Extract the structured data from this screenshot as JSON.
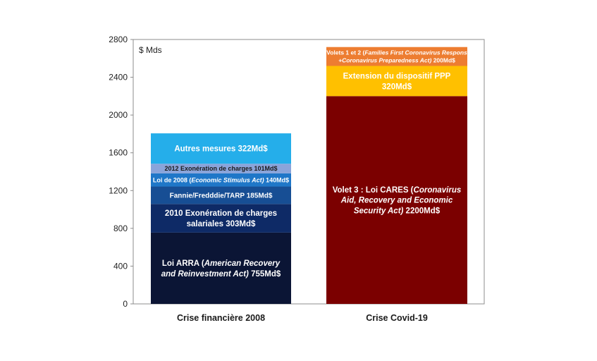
{
  "chart_data": {
    "type": "bar",
    "stacked": true,
    "unit_label": "$ Mds",
    "ylim": [
      0,
      2800
    ],
    "yticks": [
      0,
      400,
      800,
      1200,
      1600,
      2000,
      2400,
      2800
    ],
    "grid": false,
    "legend": "none",
    "categories": [
      "Crise financière 2008",
      "Crise Covid-19"
    ],
    "stacks": [
      {
        "category": "Crise financière 2008",
        "total": 1806,
        "segments": [
          {
            "value": 755,
            "color": "#0b1535",
            "text_color": "#ffffff",
            "label_parts": [
              [
                {
                  "t": "Loi ARRA (",
                  "i": false
                },
                {
                  "t": "American Recovery",
                  "i": true
                }
              ],
              [
                {
                  "t": "and Reinvestment Act)",
                  "i": true
                },
                {
                  "t": " 755Md$",
                  "i": false
                }
              ]
            ]
          },
          {
            "value": 303,
            "color": "#0e2a66",
            "text_color": "#ffffff",
            "label_parts": [
              [
                {
                  "t": "2010 Exonération de charges",
                  "i": false
                }
              ],
              [
                {
                  "t": "salariales 303Md$",
                  "i": false
                }
              ]
            ]
          },
          {
            "value": 185,
            "color": "#174e94",
            "text_color": "#ffffff",
            "label_parts": [
              [
                {
                  "t": "Fannie/Fredddie/TARP 185Md$",
                  "i": false
                }
              ]
            ]
          },
          {
            "value": 140,
            "color": "#1f77c8",
            "text_color": "#ffffff",
            "label_parts": [
              [
                {
                  "t": "Loi de 2008 (",
                  "i": false
                },
                {
                  "t": "Economic Stimulus Act)",
                  "i": true
                },
                {
                  "t": " 140Md$",
                  "i": false
                }
              ]
            ]
          },
          {
            "value": 101,
            "color": "#8aa4da",
            "text_color": "#1a1a1a",
            "label_parts": [
              [
                {
                  "t": "2012 Exonération de charges 101Md$",
                  "i": false
                }
              ]
            ]
          },
          {
            "value": 322,
            "color": "#25aeea",
            "text_color": "#ffffff",
            "label_parts": [
              [
                {
                  "t": "Autres mesures 322Md$",
                  "i": false
                }
              ]
            ]
          }
        ]
      },
      {
        "category": "Crise Covid-19",
        "total": 2720,
        "segments": [
          {
            "value": 2200,
            "color": "#7b0000",
            "text_color": "#ffffff",
            "label_parts": [
              [
                {
                  "t": "Volet 3 : Loi CARES (",
                  "i": false
                },
                {
                  "t": "Coronavirus",
                  "i": true
                }
              ],
              [
                {
                  "t": "Aid, Recovery and Economic",
                  "i": true
                }
              ],
              [
                {
                  "t": "Security Act)",
                  "i": true
                },
                {
                  "t": " 2200Md$",
                  "i": false
                }
              ]
            ]
          },
          {
            "value": 320,
            "color": "#ffc000",
            "text_color": "#ffffff",
            "label_parts": [
              [
                {
                  "t": "Extension du dispositif PPP",
                  "i": false
                }
              ],
              [
                {
                  "t": "320Md$",
                  "i": false
                }
              ]
            ]
          },
          {
            "value": 200,
            "color": "#ed7d31",
            "text_color": "#ffffff",
            "label_parts": [
              [
                {
                  "t": "Volets 1 et 2 (",
                  "i": false
                },
                {
                  "t": "Families First Coronavirus Respons",
                  "i": true
                }
              ],
              [
                {
                  "t": "+Coronavirus Preparedness Act)",
                  "i": true
                },
                {
                  "t": " 200Md$",
                  "i": false
                }
              ]
            ]
          }
        ]
      }
    ]
  }
}
